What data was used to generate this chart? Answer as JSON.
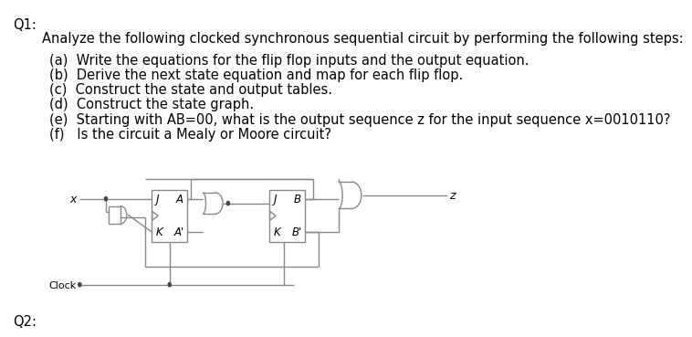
{
  "background_color": "#ffffff",
  "q1_label": "Q1:",
  "q2_label": "Q2:",
  "title_text": "Analyze the following clocked synchronous sequential circuit by performing the following steps:",
  "items": [
    "(a)  Write the equations for the flip flop inputs and the output equation.",
    "(b)  Derive the next state equation and map for each flip flop.",
    "(c)  Construct the state and output tables.",
    "(d)  Construct the state graph.",
    "(e)  Starting with AB=00, what is the output sequence z for the input sequence x=0010110?",
    "(f)   Is the circuit a Mealy or Moore circuit?"
  ],
  "font_size_q": 10.5,
  "font_size_title": 10.5,
  "font_size_items": 10.5,
  "line_color": "#888888",
  "text_color": "#000000"
}
